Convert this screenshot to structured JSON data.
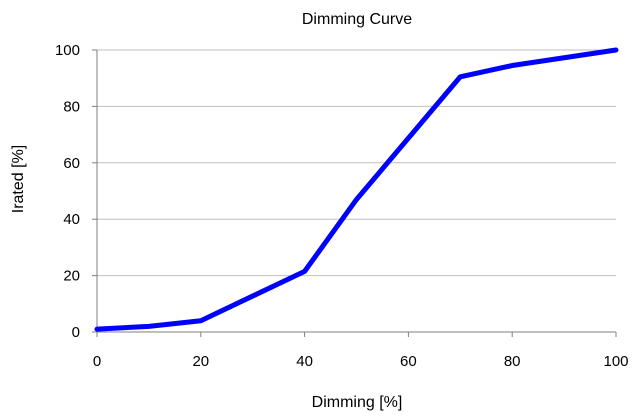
{
  "chart_data": {
    "type": "line",
    "title": "Dimming Curve",
    "xlabel": "Dimming [%]",
    "ylabel": "Irated [%]",
    "xlim": [
      0,
      100
    ],
    "ylim": [
      0,
      100
    ],
    "x_ticks": [
      0,
      20,
      40,
      60,
      80,
      100
    ],
    "y_ticks": [
      0,
      20,
      40,
      60,
      80,
      100
    ],
    "grid": "horizontal",
    "legend": "none",
    "series": [
      {
        "color": "#0000ff",
        "x": [
          0,
          10,
          20,
          40,
          50,
          70,
          80,
          100
        ],
        "y": [
          1,
          2,
          4,
          21.5,
          47,
          90.5,
          94.5,
          100
        ]
      }
    ]
  }
}
